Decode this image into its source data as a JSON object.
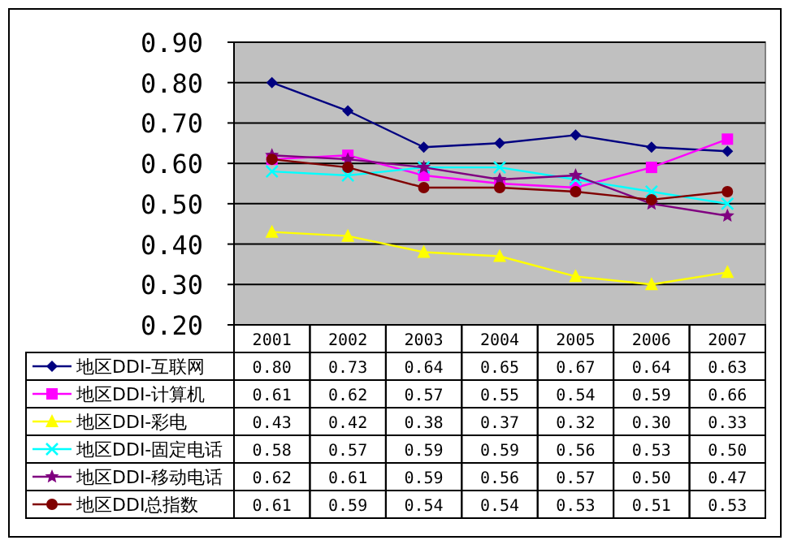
{
  "chart_data": {
    "type": "line",
    "categories": [
      "2001",
      "2002",
      "2003",
      "2004",
      "2005",
      "2006",
      "2007"
    ],
    "ylim": [
      0.2,
      0.9
    ],
    "yticks": [
      {
        "value": 0.2,
        "label": "0.20"
      },
      {
        "value": 0.3,
        "label": "0.30"
      },
      {
        "value": 0.4,
        "label": "0.40"
      },
      {
        "value": 0.5,
        "label": "0.50"
      },
      {
        "value": 0.6,
        "label": "0.60"
      },
      {
        "value": 0.7,
        "label": "0.70"
      },
      {
        "value": 0.8,
        "label": "0.80"
      },
      {
        "value": 0.9,
        "label": "0.90"
      }
    ],
    "grid": "y",
    "legend": "bottom",
    "series": [
      {
        "name": "地区DDI-互联网",
        "color": "#000080",
        "marker": "diamond",
        "values": [
          0.8,
          0.73,
          0.64,
          0.65,
          0.67,
          0.64,
          0.63
        ],
        "value_labels": [
          "0.80",
          "0.73",
          "0.64",
          "0.65",
          "0.67",
          "0.64",
          "0.63"
        ]
      },
      {
        "name": "地区DDI-计算机",
        "color": "#ff00ff",
        "marker": "square",
        "values": [
          0.61,
          0.62,
          0.57,
          0.55,
          0.54,
          0.59,
          0.66
        ],
        "value_labels": [
          "0.61",
          "0.62",
          "0.57",
          "0.55",
          "0.54",
          "0.59",
          "0.66"
        ]
      },
      {
        "name": "地区DDI-彩电",
        "color": "#ffff00",
        "marker": "triangle",
        "values": [
          0.43,
          0.42,
          0.38,
          0.37,
          0.32,
          0.3,
          0.33
        ],
        "value_labels": [
          "0.43",
          "0.42",
          "0.38",
          "0.37",
          "0.32",
          "0.30",
          "0.33"
        ]
      },
      {
        "name": "地区DDI-固定电话",
        "color": "#00ffff",
        "marker": "cross",
        "values": [
          0.58,
          0.57,
          0.59,
          0.59,
          0.56,
          0.53,
          0.5
        ],
        "value_labels": [
          "0.58",
          "0.57",
          "0.59",
          "0.59",
          "0.56",
          "0.53",
          "0.50"
        ]
      },
      {
        "name": "地区DDI-移动电话",
        "color": "#800080",
        "marker": "star",
        "values": [
          0.62,
          0.61,
          0.59,
          0.56,
          0.57,
          0.5,
          0.47
        ],
        "value_labels": [
          "0.62",
          "0.61",
          "0.59",
          "0.56",
          "0.57",
          "0.50",
          "0.47"
        ]
      },
      {
        "name": "地区DDI总指数",
        "color": "#800000",
        "marker": "circle",
        "values": [
          0.61,
          0.59,
          0.54,
          0.54,
          0.53,
          0.51,
          0.53
        ],
        "value_labels": [
          "0.61",
          "0.59",
          "0.54",
          "0.54",
          "0.53",
          "0.51",
          "0.53"
        ]
      }
    ]
  }
}
